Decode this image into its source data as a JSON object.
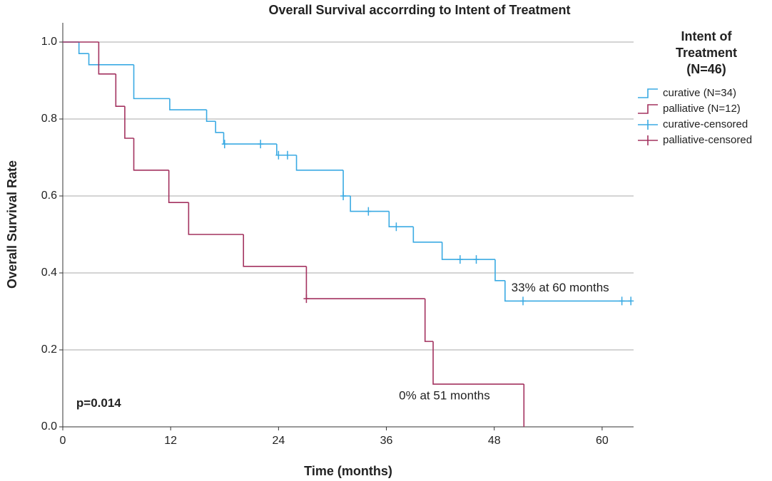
{
  "chart_data": {
    "type": "step",
    "title": "Overall Survival accorrding to Intent of Treatment",
    "x_label": "Time (months)",
    "y_label": "Overall Survival Rate",
    "xlim": [
      0,
      63.5
    ],
    "ylim": [
      0,
      1.05
    ],
    "xticks": [
      0,
      12,
      24,
      36,
      48,
      60
    ],
    "yticks": [
      {
        "value": 0,
        "label": "0.0"
      },
      {
        "value": 0.2,
        "label": "0.2"
      },
      {
        "value": 0.4,
        "label": "0.4"
      },
      {
        "value": 0.6,
        "label": "0.6"
      },
      {
        "value": 0.8,
        "label": "0.8"
      },
      {
        "value": 1,
        "label": "1.0"
      }
    ],
    "grid": true,
    "legend_title": [
      "Intent of",
      "Treatment",
      "(N=46)"
    ],
    "series": [
      {
        "name": "curative (N=34)",
        "kind": "line",
        "color": "#3aaae3",
        "x": [
          0,
          1.8,
          2.9,
          7.9,
          11.9,
          16,
          17,
          17.9,
          23.8,
          26,
          31.2,
          32,
          36.3,
          39,
          42.2,
          48.1,
          49.2,
          63.2
        ],
        "values": [
          1,
          0.97,
          0.941,
          0.853,
          0.824,
          0.794,
          0.765,
          0.735,
          0.706,
          0.667,
          0.6,
          0.56,
          0.52,
          0.48,
          0.435,
          0.38,
          0.327,
          0.327
        ]
      },
      {
        "name": "palliative (N=12)",
        "kind": "line",
        "color": "#a3325f",
        "x": [
          0,
          4,
          5.9,
          6.9,
          7.9,
          11.8,
          14,
          20.1,
          27.1,
          40.3,
          41.2,
          51.3
        ],
        "values": [
          1,
          0.917,
          0.833,
          0.75,
          0.667,
          0.583,
          0.5,
          0.417,
          0.333,
          0.222,
          0.111,
          0
        ]
      },
      {
        "name": "curative-censored",
        "kind": "censor",
        "color": "#3aaae3",
        "x": [
          18,
          22,
          24,
          25,
          31.2,
          34,
          37.1,
          44.2,
          46,
          51.2,
          62.2,
          63.2
        ],
        "values": [
          0.735,
          0.735,
          0.706,
          0.706,
          0.6,
          0.56,
          0.52,
          0.435,
          0.435,
          0.327,
          0.327,
          0.327
        ]
      },
      {
        "name": "palliative-censored",
        "kind": "censor",
        "color": "#a3325f",
        "x": [
          27.1
        ],
        "values": [
          0.333
        ]
      }
    ],
    "annotations": [
      {
        "text": "33% at 60 months",
        "x": 49.9,
        "y": 0.36
      },
      {
        "text": "0% at 51 months",
        "x": 37.4,
        "y": 0.08
      },
      {
        "text": "p=0.014",
        "x": 1.5,
        "y": 0.06
      }
    ]
  }
}
